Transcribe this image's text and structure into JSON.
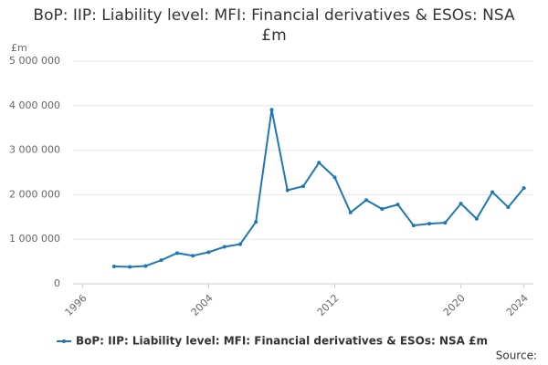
{
  "chart_data": {
    "type": "line",
    "title": "BoP: IIP: Liability level: MFI: Financial derivatives & ESOs: NSA £m",
    "y_unit": "£m",
    "source": "Source:",
    "x": [
      1998,
      1999,
      2000,
      2001,
      2002,
      2003,
      2004,
      2005,
      2006,
      2007,
      2008,
      2009,
      2010,
      2011,
      2012,
      2013,
      2014,
      2015,
      2016,
      2017,
      2018,
      2019,
      2020,
      2021,
      2022,
      2023,
      2024
    ],
    "series": [
      {
        "name": "BoP: IIP: Liability level: MFI: Financial derivatives & ESOs: NSA £m",
        "color": "#1f78b4",
        "values": [
          390000,
          380000,
          400000,
          530000,
          690000,
          630000,
          710000,
          830000,
          890000,
          1390000,
          3910000,
          2100000,
          2190000,
          2720000,
          2390000,
          1600000,
          1880000,
          1680000,
          1780000,
          1310000,
          1350000,
          1370000,
          1800000,
          1460000,
          2060000,
          1720000,
          2150000
        ]
      }
    ],
    "xlim": [
      1995.4,
      2024.6
    ],
    "xticks": [
      1996,
      2004,
      2012,
      2020,
      2024
    ],
    "ylim": [
      0,
      5000000
    ],
    "yticks": [
      0,
      {
        "value": 1000000,
        "label": "1 000 000"
      },
      {
        "value": 2000000,
        "label": "2 000 000"
      },
      {
        "value": 3000000,
        "label": "3 000 000"
      },
      {
        "value": 4000000,
        "label": "4 000 000"
      },
      {
        "value": 5000000,
        "label": "5 000 000"
      }
    ],
    "grid": true
  }
}
